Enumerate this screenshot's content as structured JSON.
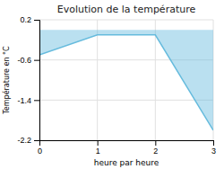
{
  "chart_data": {
    "type": "area",
    "title": "Evolution de la température",
    "xlabel": "heure par heure",
    "ylabel": "Température en °C",
    "x": [
      0,
      1,
      2,
      3
    ],
    "values": [
      -0.5,
      -0.1,
      -0.1,
      -2.0
    ],
    "color": "#66bbdd",
    "xlim": [
      0,
      3
    ],
    "ylim": [
      -2.2,
      0.2
    ],
    "xticks": [
      0,
      1,
      2,
      3
    ],
    "yticks": [
      0.2,
      -0.6,
      -1.4,
      -2.2
    ],
    "grid": true
  }
}
